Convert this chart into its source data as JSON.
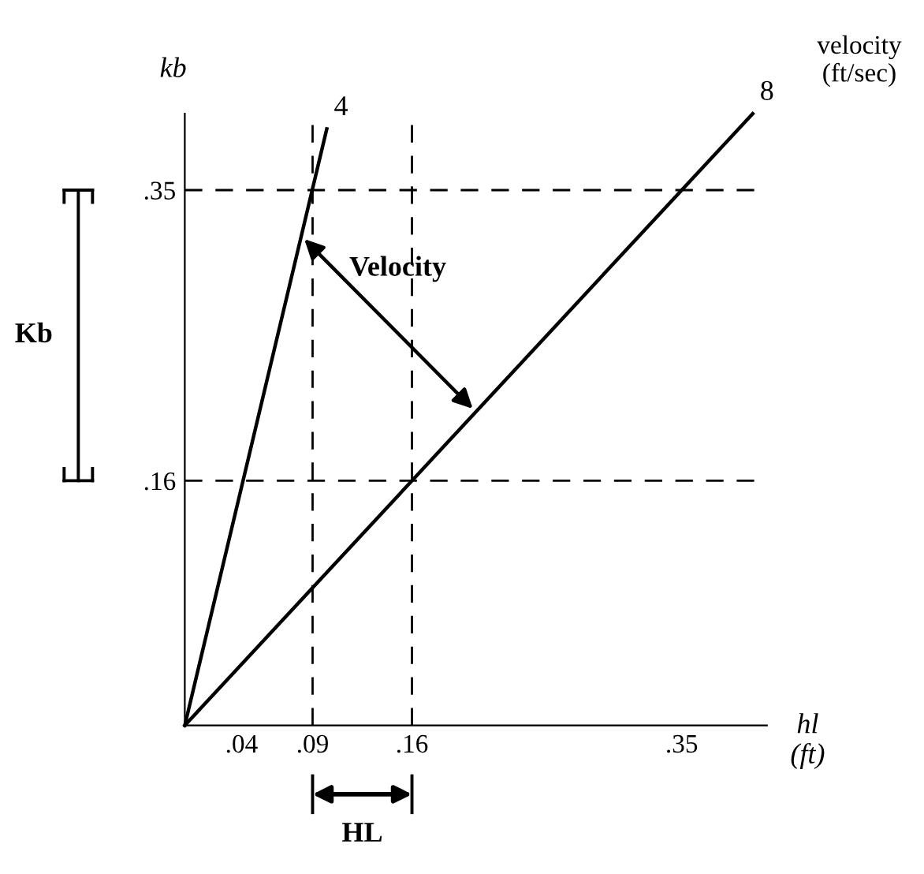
{
  "chart_data": {
    "type": "line",
    "xlabel": "hl\n(ft)",
    "ylabel": "kb",
    "series": [
      {
        "name": "4",
        "color": "#000000",
        "x": [
          0,
          0.1
        ],
        "values": [
          0,
          0.39
        ]
      },
      {
        "name": "8",
        "color": "#000000",
        "x": [
          0,
          0.4
        ],
        "values": [
          0,
          0.4
        ]
      }
    ],
    "xlim": [
      0,
      0.41
    ],
    "ylim": [
      0,
      0.4
    ],
    "xticks": [
      {
        "value": 0.04,
        "label": ".04"
      },
      {
        "value": 0.09,
        "label": ".09"
      },
      {
        "value": 0.16,
        "label": ".16"
      },
      {
        "value": 0.35,
        "label": ".35"
      }
    ],
    "yticks": [
      {
        "value": 0.16,
        "label": ".16"
      },
      {
        "value": 0.35,
        "label": ".35"
      }
    ],
    "ref_lines": [
      {
        "axis": "y",
        "value": 0.35,
        "color": "#000000",
        "line_style": "dashed"
      },
      {
        "axis": "y",
        "value": 0.16,
        "color": "#000000",
        "line_style": "dashed"
      },
      {
        "axis": "x",
        "value": 0.09,
        "color": "#000000",
        "line_style": "dashed"
      },
      {
        "axis": "x",
        "value": 0.16,
        "color": "#000000",
        "line_style": "dashed"
      }
    ],
    "annotations": [
      "velocity\n(ft/sec)",
      "Velocity",
      "Kb",
      "HL"
    ],
    "grid": false,
    "legend": false,
    "marker": "none",
    "line_style": "solid"
  }
}
